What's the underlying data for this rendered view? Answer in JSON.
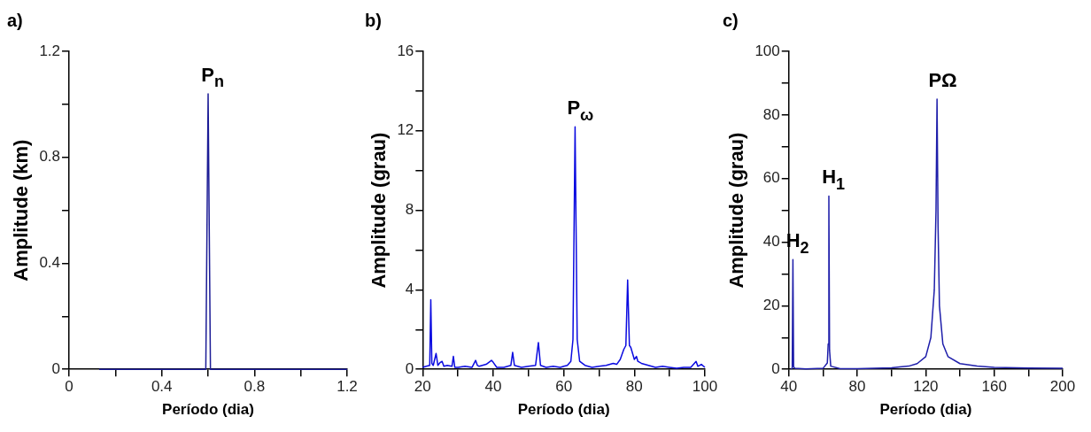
{
  "chart_data": [
    {
      "type": "line",
      "title": "a)",
      "xlabel": "Período (dia)",
      "ylabel": "Amplitude (km)",
      "color": "#1c1c96",
      "grid": false,
      "x": [
        0.13,
        0.59,
        0.6,
        0.61,
        1.2
      ],
      "values": [
        0,
        0,
        1.04,
        0,
        0
      ],
      "xlim": [
        0,
        1.2
      ],
      "ylim": [
        0,
        1.2
      ],
      "xticks": [
        0,
        {
          "value": 0.2,
          "label": null
        },
        0.4,
        {
          "value": 0.6,
          "label": null
        },
        0.8,
        {
          "value": 1.0,
          "label": null
        },
        1.2
      ],
      "yticks": [
        0,
        {
          "value": 0.2,
          "label": null
        },
        0.4,
        {
          "value": 0.6,
          "label": null
        },
        0.8,
        {
          "value": 1.0,
          "label": null
        },
        1.2
      ],
      "annotations": [
        {
          "text": "P$_{n}$",
          "x": 0.6,
          "y": 1.04
        }
      ]
    },
    {
      "type": "line",
      "title": "b)",
      "xlabel": "Período (dia)",
      "ylabel": "Amplitude (grau)",
      "color": "#0a0ae0",
      "grid": false,
      "x": [
        20,
        21,
        22,
        22.3,
        22.6,
        23,
        23.8,
        24.3,
        25,
        25.5,
        26,
        27,
        28.3,
        28.7,
        29.1,
        30,
        32,
        34,
        35,
        35.5,
        36,
        38,
        39.5,
        40,
        41,
        43,
        45,
        45.5,
        46,
        48,
        50,
        52,
        52.8,
        53.4,
        55,
        57,
        59,
        60,
        61,
        62,
        62.6,
        63.2,
        63.8,
        64.5,
        66,
        68,
        70,
        72,
        74,
        75,
        76,
        77,
        77.6,
        78.1,
        78.6,
        79,
        79.5,
        80,
        80.6,
        81,
        82,
        84,
        86,
        88,
        90,
        92,
        94,
        96,
        97.5,
        98,
        99,
        100
      ],
      "values": [
        0.1,
        0.15,
        0.2,
        3.5,
        0.3,
        0.2,
        0.8,
        0.2,
        0.35,
        0.4,
        0.15,
        0.2,
        0.15,
        0.65,
        0.1,
        0.1,
        0.15,
        0.1,
        0.45,
        0.2,
        0.15,
        0.25,
        0.45,
        0.35,
        0.1,
        0.1,
        0.2,
        0.85,
        0.2,
        0.1,
        0.15,
        0.2,
        1.35,
        0.2,
        0.1,
        0.15,
        0.1,
        0.15,
        0.2,
        0.4,
        1.5,
        12.2,
        1.5,
        0.4,
        0.2,
        0.1,
        0.15,
        0.2,
        0.3,
        0.25,
        0.5,
        1.0,
        1.2,
        4.5,
        1.2,
        1.1,
        0.8,
        0.5,
        0.65,
        0.4,
        0.3,
        0.2,
        0.1,
        0.15,
        0.1,
        0.05,
        0.1,
        0.1,
        0.4,
        0.15,
        0.25,
        0.1
      ],
      "xlim": [
        20,
        100
      ],
      "ylim": [
        0,
        16
      ],
      "xticks": [
        20,
        {
          "value": 30,
          "label": null
        },
        40,
        {
          "value": 50,
          "label": null
        },
        60,
        {
          "value": 70,
          "label": null
        },
        80,
        {
          "value": 90,
          "label": null
        },
        100
      ],
      "yticks": [
        0,
        {
          "value": 2,
          "label": null
        },
        4,
        {
          "value": 6,
          "label": null
        },
        8,
        {
          "value": 10,
          "label": null
        },
        12,
        {
          "value": 14,
          "label": null
        },
        16
      ],
      "annotations": [
        {
          "text": "P$_{ω}$",
          "x": 63.2,
          "y": 12.2
        }
      ]
    },
    {
      "type": "line",
      "title": "c)",
      "xlabel": "Período (dia)",
      "ylabel": "Amplitude (grau)",
      "color": "#1e1eaa",
      "grid": false,
      "x": [
        41.5,
        42,
        42.4,
        42.8,
        43.5,
        50,
        60,
        62.5,
        63,
        63.4,
        63.8,
        64.5,
        70,
        80,
        90,
        100,
        110,
        115,
        120,
        123,
        125,
        126,
        126.6,
        127.2,
        128,
        130,
        133,
        140,
        150,
        160,
        180,
        200
      ],
      "values": [
        0,
        0.5,
        34.5,
        0.8,
        0.3,
        0.1,
        0.3,
        2,
        8,
        54.5,
        6,
        1,
        0.2,
        0.2,
        0.3,
        0.5,
        1,
        1.8,
        4,
        10,
        25,
        50,
        85,
        45,
        20,
        8,
        4,
        1.8,
        1,
        0.6,
        0.4,
        0.3
      ],
      "xlim": [
        40,
        200
      ],
      "ylim": [
        0,
        100
      ],
      "xticks": [
        40,
        {
          "value": 60,
          "label": null
        },
        80,
        {
          "value": 100,
          "label": null
        },
        120,
        {
          "value": 140,
          "label": null
        },
        160,
        {
          "value": 180,
          "label": null
        },
        200
      ],
      "yticks": [
        0,
        {
          "value": 10,
          "label": null
        },
        20,
        {
          "value": 30,
          "label": null
        },
        40,
        {
          "value": 50,
          "label": null
        },
        60,
        {
          "value": 70,
          "label": null
        },
        80,
        {
          "value": 90,
          "label": null
        },
        100
      ],
      "annotations": [
        {
          "text": "PΩ",
          "x": 126.6,
          "y": 85
        },
        {
          "text": "H$_{1}$",
          "x": 63.4,
          "y": 54.5
        },
        {
          "text": "H$_{2}$",
          "x": 42.4,
          "y": 34.5
        }
      ]
    }
  ]
}
